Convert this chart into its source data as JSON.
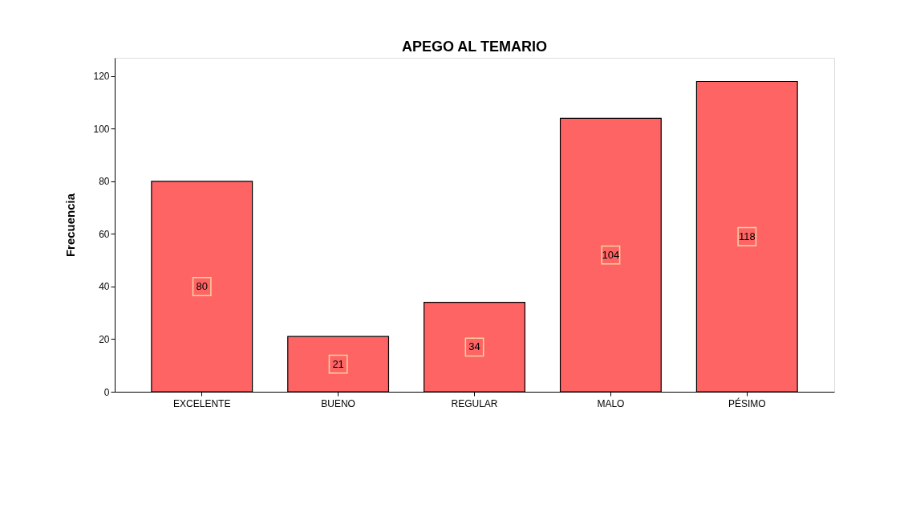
{
  "chart_data": {
    "type": "bar",
    "title": "APEGO AL TEMARIO",
    "ylabel": "Frecuencia",
    "categories": [
      "EXCELENTE",
      "BUENO",
      "REGULAR",
      "MALO",
      "PÉSIMO"
    ],
    "values": [
      80,
      21,
      34,
      104,
      118
    ],
    "color": "#fe6464",
    "ylim": [
      0,
      127
    ],
    "yticks": [
      0,
      20,
      40,
      60,
      80,
      100,
      120
    ],
    "grid": false,
    "data_labels": true
  }
}
